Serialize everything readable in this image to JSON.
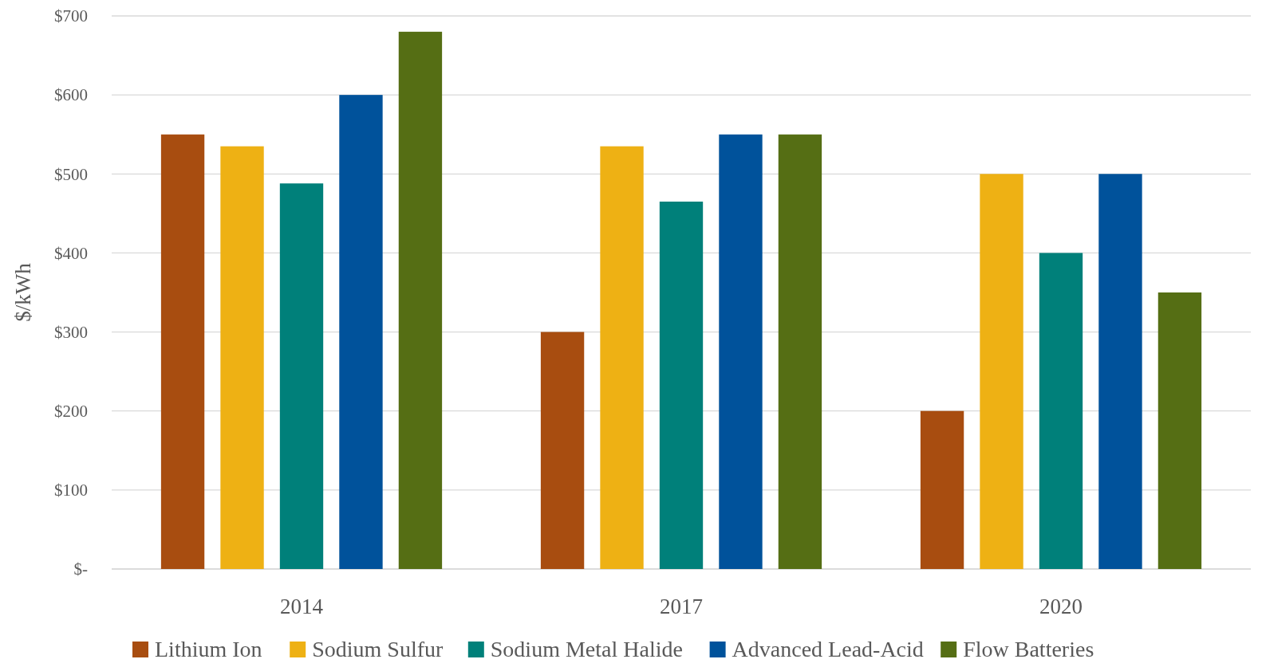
{
  "chart_data": {
    "type": "bar",
    "ylabel": "$/kWh",
    "categories": [
      "2014",
      "2017",
      "2020"
    ],
    "series": [
      {
        "name": "Lithium Ion",
        "color": "#a84d10",
        "values": [
          550,
          300,
          200
        ]
      },
      {
        "name": "Sodium Sulfur",
        "color": "#eeb114",
        "values": [
          535,
          535,
          500
        ]
      },
      {
        "name": "Sodium Metal Halide",
        "color": "#00807a",
        "values": [
          488,
          465,
          400
        ]
      },
      {
        "name": "Advanced Lead-Acid",
        "color": "#00529b",
        "values": [
          600,
          550,
          500
        ]
      },
      {
        "name": "Flow Batteries",
        "color": "#556e14",
        "values": [
          680,
          550,
          350
        ]
      }
    ],
    "ylim": [
      0,
      700
    ],
    "yticks": [
      {
        "value": 0,
        "label": "$-"
      },
      {
        "value": 100,
        "label": "$100"
      },
      {
        "value": 200,
        "label": "$200"
      },
      {
        "value": 300,
        "label": "$300"
      },
      {
        "value": 400,
        "label": "$400"
      },
      {
        "value": 500,
        "label": "$500"
      },
      {
        "value": 600,
        "label": "$600"
      },
      {
        "value": 700,
        "label": "$700"
      }
    ],
    "grid": "y",
    "legend": "bottom"
  }
}
